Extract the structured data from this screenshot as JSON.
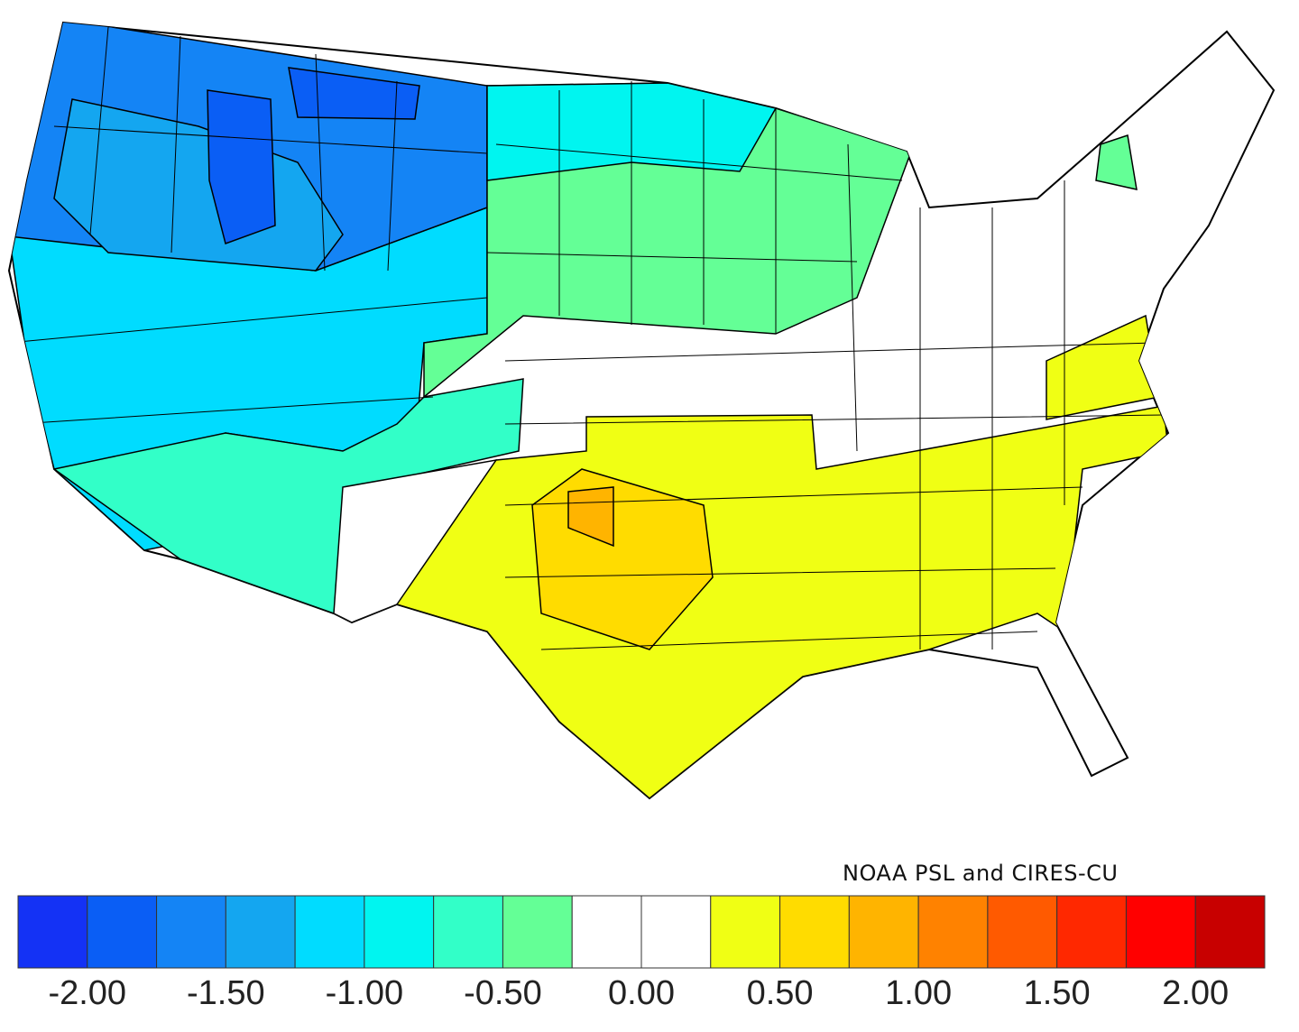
{
  "credit": "NOAA PSL and CIRES-CU",
  "colorbar": {
    "colors": [
      "#1432f5",
      "#0a5ef5",
      "#1484f5",
      "#14a6f0",
      "#00dcff",
      "#00f5f0",
      "#32ffc8",
      "#64ff96",
      "#ffffff",
      "#ffffff",
      "#f0ff14",
      "#ffdc00",
      "#ffb400",
      "#ff8200",
      "#ff5a00",
      "#ff2800",
      "#ff0000",
      "#c80000"
    ],
    "labels": [
      "-2.00",
      "-1.50",
      "-1.00",
      "-0.50",
      "0.00",
      "0.50",
      "1.00",
      "1.50",
      "2.00"
    ]
  },
  "regions": [
    {
      "name": "cyan-west",
      "color": "#00dcff"
    },
    {
      "name": "blue-northwest",
      "color": "#1484f5"
    },
    {
      "name": "lightblue-northwest",
      "color": "#14a6f0"
    },
    {
      "name": "darkblue-idaho",
      "color": "#0a5ef5"
    },
    {
      "name": "darkblue-montana",
      "color": "#0a5ef5"
    },
    {
      "name": "green-plains",
      "color": "#64ff96"
    },
    {
      "name": "cyan-dakotas",
      "color": "#00f5f0"
    },
    {
      "name": "aqua-southwest",
      "color": "#32ffc8"
    },
    {
      "name": "white-newmexico",
      "color": "#ffffff"
    },
    {
      "name": "yellow-south",
      "color": "#f0ff14"
    },
    {
      "name": "gold-oklahoma",
      "color": "#ffdc00"
    },
    {
      "name": "orange-oklahoma",
      "color": "#ffb400"
    },
    {
      "name": "yellow-virginia",
      "color": "#f0ff14"
    },
    {
      "name": "green-vermont",
      "color": "#64ff96"
    }
  ]
}
